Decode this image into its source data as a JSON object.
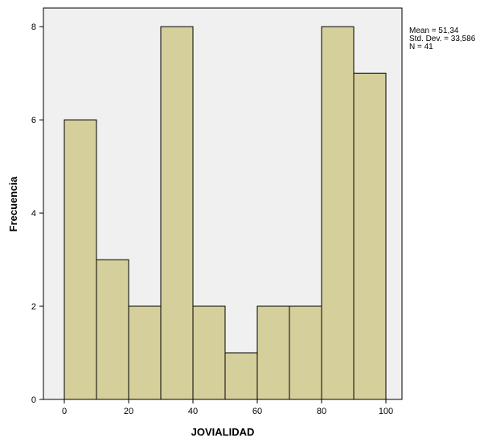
{
  "chart_data": {
    "type": "bar",
    "subtype": "histogram",
    "xlabel": "JOVIALIDAD",
    "ylabel": "Frecuencia",
    "xlim": [
      -6.5,
      105
    ],
    "ylim": [
      0,
      8.4
    ],
    "x_ticks": [
      0,
      20,
      40,
      60,
      80,
      100
    ],
    "y_ticks": [
      0,
      2,
      4,
      6,
      8
    ],
    "bins": [
      {
        "start": 0,
        "end": 10,
        "count": 6
      },
      {
        "start": 10,
        "end": 20,
        "count": 3
      },
      {
        "start": 20,
        "end": 30,
        "count": 2
      },
      {
        "start": 30,
        "end": 40,
        "count": 8
      },
      {
        "start": 40,
        "end": 50,
        "count": 2
      },
      {
        "start": 50,
        "end": 60,
        "count": 1
      },
      {
        "start": 60,
        "end": 70,
        "count": 2
      },
      {
        "start": 70,
        "end": 80,
        "count": 2
      },
      {
        "start": 80,
        "end": 90,
        "count": 8
      },
      {
        "start": 90,
        "end": 100,
        "count": 7
      }
    ],
    "stats": {
      "mean": "Mean = 51,34",
      "std": "Std. Dev. = 33,586",
      "n": "N = 41"
    },
    "colors": {
      "bar_fill": "#d5cf9b",
      "bar_stroke": "#000000",
      "plot_bg": "#f0f0f0"
    },
    "grid": false
  }
}
